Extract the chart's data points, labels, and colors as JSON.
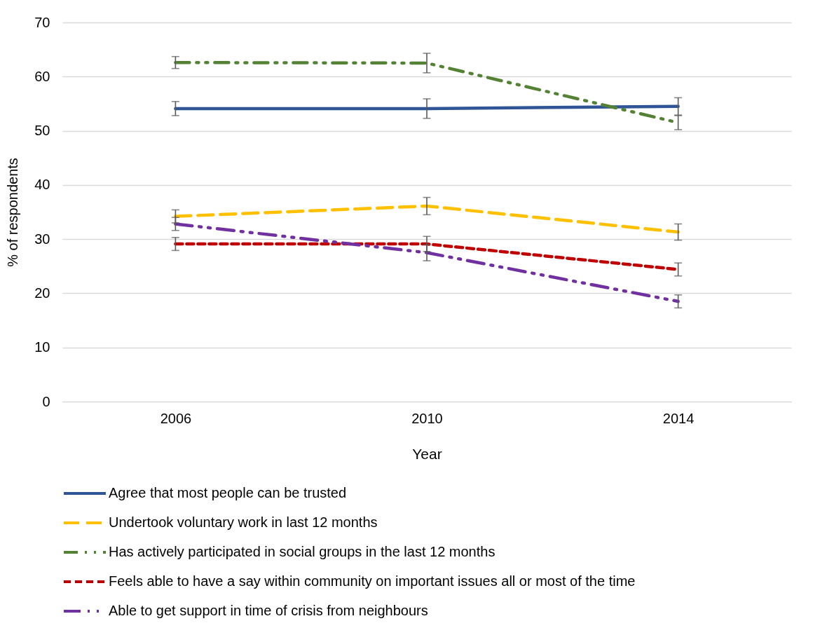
{
  "chart_data": {
    "type": "line",
    "xlabel": "Year",
    "ylabel": "% of respondents",
    "categories": [
      "2006",
      "2010",
      "2014"
    ],
    "ylim": [
      0,
      70
    ],
    "yticks": [
      0,
      10,
      20,
      30,
      40,
      50,
      60,
      70
    ],
    "grid": "y",
    "legend": "bottom",
    "marker": "none",
    "series": [
      {
        "name": "Agree that most people can be trusted",
        "color": "#2f5597",
        "line_style": "solid",
        "values": [
          54.1,
          54.1,
          54.5
        ],
        "errors": [
          1.3,
          1.8,
          1.6
        ]
      },
      {
        "name": "Undertook voluntary work in last 12 months",
        "color": "#ffc000",
        "line_style": "dashed",
        "values": [
          34.2,
          36.1,
          31.3
        ],
        "errors": [
          1.2,
          1.6,
          1.5
        ]
      },
      {
        "name": "Has actively participated in social groups in the last 12 months",
        "color": "#548235",
        "line_style": "dashed",
        "values": [
          62.6,
          62.5,
          51.5
        ],
        "errors": [
          1.1,
          1.8,
          1.3
        ]
      },
      {
        "name": "Feels able to have a say within community on important issues all or most of the time",
        "color": "#c00000",
        "line_style": "dashed",
        "values": [
          29.1,
          29.1,
          24.4
        ],
        "errors": [
          1.2,
          1.4,
          1.2
        ]
      },
      {
        "name": "Able to get support in time of crisis from neighbours",
        "color": "#7030a0",
        "line_style": "dashed",
        "values": [
          32.8,
          27.5,
          18.5
        ],
        "errors": [
          1.2,
          1.5,
          1.2
        ]
      }
    ]
  }
}
